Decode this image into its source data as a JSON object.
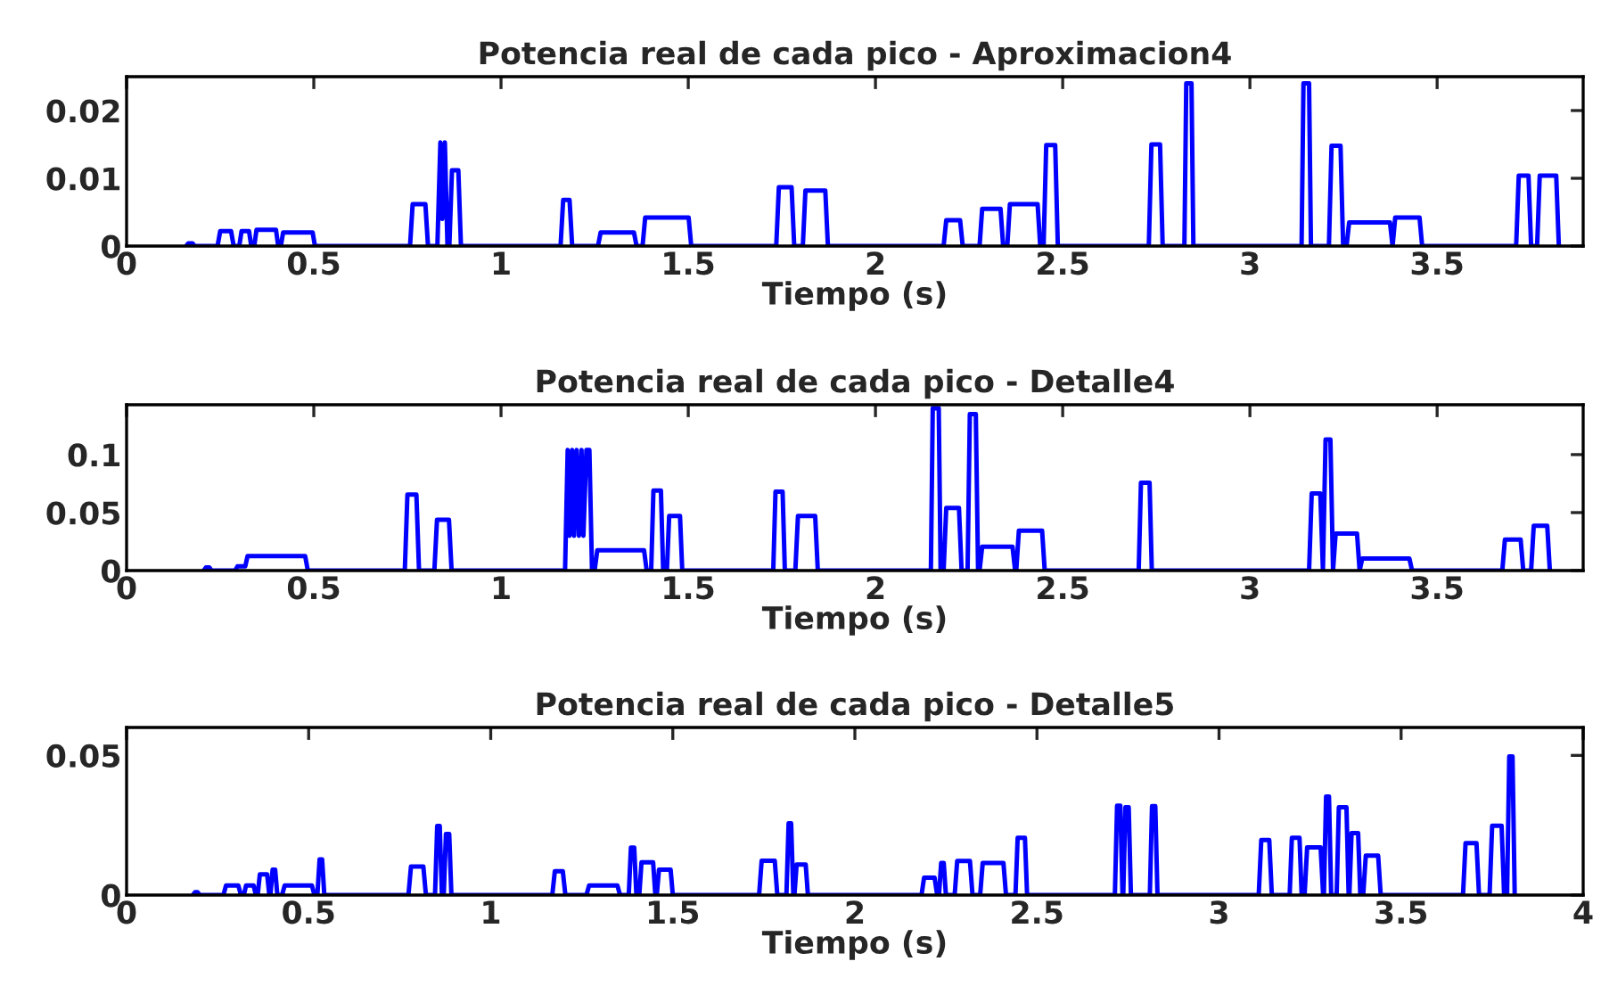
{
  "chart_data": [
    {
      "type": "line",
      "title": "Potencia real de cada pico - Aproximacion4",
      "xlabel": "Tiempo (s)",
      "xlim": [
        0,
        3.89
      ],
      "xticks": [
        0,
        0.5,
        1,
        1.5,
        2,
        2.5,
        3,
        3.5
      ],
      "ylim": [
        0,
        0.025
      ],
      "yticks": [
        0,
        0.01,
        0.02
      ],
      "grid": false,
      "legend": false,
      "series": [
        {
          "color": "#0000ff",
          "x": [
            0.159,
            0.165,
            0.176,
            0.182,
            0.243,
            0.25,
            0.279,
            0.286,
            0.301,
            0.307,
            0.327,
            0.333,
            0.341,
            0.347,
            0.399,
            0.405,
            0.412,
            0.418,
            0.497,
            0.503,
            0.757,
            0.764,
            0.798,
            0.805,
            0.83,
            0.838,
            0.843,
            0.85,
            0.857,
            0.862,
            0.869,
            0.886,
            0.893,
            1.159,
            1.166,
            1.183,
            1.19,
            1.259,
            1.266,
            1.355,
            1.362,
            1.378,
            1.385,
            1.501,
            1.508,
            1.735,
            1.742,
            1.776,
            1.783,
            1.806,
            1.813,
            1.866,
            1.873,
            2.182,
            2.189,
            2.226,
            2.233,
            2.278,
            2.285,
            2.334,
            2.341,
            2.352,
            2.359,
            2.433,
            2.44,
            2.449,
            2.456,
            2.48,
            2.487,
            2.73,
            2.737,
            2.76,
            2.767,
            2.825,
            2.83,
            2.837,
            2.844,
            2.849,
            3.138,
            3.143,
            3.15,
            3.158,
            3.163,
            3.211,
            3.218,
            3.242,
            3.249,
            3.258,
            3.265,
            3.374,
            3.381,
            3.388,
            3.453,
            3.46,
            3.711,
            3.718,
            3.744,
            3.751,
            3.767,
            3.774,
            3.818,
            3.825
          ],
          "values": [
            0,
            0.0004,
            0.0004,
            0,
            0,
            0.0022,
            0.0022,
            0,
            0,
            0.0022,
            0.0022,
            0,
            0,
            0.0024,
            0.0024,
            0,
            0,
            0.002,
            0.002,
            0,
            0,
            0.0062,
            0.0062,
            0,
            0,
            0.0153,
            0.004,
            0.0153,
            0,
            0,
            0.0112,
            0.0112,
            0,
            0,
            0.0068,
            0.0068,
            0,
            0,
            0.002,
            0.002,
            0,
            0,
            0.0042,
            0.0042,
            0,
            0,
            0.0087,
            0.0087,
            0,
            0,
            0.0082,
            0.0082,
            0,
            0,
            0.0038,
            0.0038,
            0,
            0,
            0.0055,
            0.0055,
            0,
            0,
            0.0062,
            0.0062,
            0,
            0,
            0.0149,
            0.0149,
            0,
            0,
            0.015,
            0.015,
            0,
            0,
            0.024,
            null,
            0.024,
            0,
            0,
            0.024,
            null,
            0.024,
            0,
            0,
            0.0148,
            0.0148,
            0,
            0,
            0.0035,
            0.0035,
            0,
            0.0042,
            0.0042,
            0,
            0,
            0.0104,
            0.0104,
            0,
            0,
            0.0104,
            0.0104,
            0
          ]
        }
      ]
    },
    {
      "type": "line",
      "title": "Potencia real de cada pico - Detalle4",
      "xlabel": "Tiempo (s)",
      "xlim": [
        0,
        3.89
      ],
      "xticks": [
        0,
        0.5,
        1,
        1.5,
        2,
        2.5,
        3,
        3.5
      ],
      "ylim": [
        0,
        0.143
      ],
      "yticks": [
        0,
        0.05,
        0.1
      ],
      "grid": false,
      "legend": false,
      "series": [
        {
          "color": "#0000ff",
          "x": [
            0.206,
            0.212,
            0.221,
            0.227,
            0.29,
            0.296,
            0.317,
            0.323,
            0.477,
            0.484,
            0.743,
            0.75,
            0.774,
            0.781,
            0.822,
            0.829,
            0.861,
            0.868,
            1.171,
            1.178,
            1.183,
            1.19,
            1.195,
            1.202,
            1.208,
            1.215,
            1.22,
            1.228,
            1.236,
            1.243,
            1.25,
            1.257,
            1.382,
            1.389,
            1.401,
            1.407,
            1.427,
            1.433,
            1.443,
            1.449,
            1.478,
            1.484,
            1.727,
            1.733,
            1.752,
            1.758,
            1.786,
            1.793,
            1.839,
            1.846,
            2.148,
            2.153,
            2.161,
            2.169,
            2.174,
            2.182,
            2.189,
            2.223,
            2.23,
            2.246,
            2.252,
            2.268,
            2.274,
            2.278,
            2.285,
            2.366,
            2.373,
            2.376,
            2.383,
            2.445,
            2.452,
            2.703,
            2.709,
            2.732,
            2.738,
            3.158,
            3.165,
            3.188,
            3.195,
            3.202,
            3.215,
            3.222,
            3.229,
            3.286,
            3.293,
            3.3,
            3.426,
            3.433,
            3.674,
            3.681,
            3.723,
            3.73,
            3.751,
            3.758,
            3.794,
            3.801
          ],
          "values": [
            0,
            0.0026,
            0.0026,
            0,
            0,
            0.0036,
            0.0036,
            0.0124,
            0.0124,
            0,
            0,
            0.0655,
            0.0655,
            0,
            0,
            0.0438,
            0.0438,
            0,
            0,
            0.104,
            0.03,
            0.104,
            0.03,
            0.104,
            0.03,
            0.104,
            0.03,
            0.104,
            0.104,
            0,
            0,
            0.0175,
            0.0175,
            0,
            0,
            0.069,
            0.069,
            0,
            0,
            0.047,
            0.047,
            0,
            0,
            0.068,
            0.068,
            0,
            0,
            0.047,
            0.047,
            0,
            0,
            0.14,
            null,
            0.14,
            0,
            0,
            0.054,
            0.054,
            0,
            0,
            0.135,
            0.135,
            0,
            0,
            0.0206,
            0.0206,
            0,
            0,
            0.0345,
            0.0345,
            0,
            0,
            0.0758,
            0.0758,
            0,
            0,
            0.0665,
            0.0665,
            0,
            0.113,
            0.113,
            0,
            0.032,
            0.032,
            0,
            0.0103,
            0.0103,
            0,
            0,
            0.0268,
            0.0268,
            0,
            0,
            0.0387,
            0.0387,
            0
          ]
        }
      ]
    },
    {
      "type": "line",
      "title": "Potencia real de cada pico - Detalle5",
      "xlabel": "Tiempo (s)",
      "xlim": [
        0,
        4
      ],
      "xticks": [
        0,
        0.5,
        1,
        1.5,
        2,
        2.5,
        3,
        3.5,
        4
      ],
      "ylim": [
        0,
        0.06
      ],
      "yticks": [
        0,
        0.05
      ],
      "grid": false,
      "legend": false,
      "series": [
        {
          "color": "#0000ff",
          "x": [
            0.182,
            0.188,
            0.195,
            0.201,
            0.266,
            0.273,
            0.307,
            0.314,
            0.322,
            0.328,
            0.349,
            0.355,
            0.36,
            0.366,
            0.386,
            0.392,
            0.395,
            0.401,
            0.408,
            0.414,
            0.427,
            0.434,
            0.509,
            0.516,
            0.524,
            0.53,
            0.537,
            0.543,
            0.774,
            0.781,
            0.815,
            0.822,
            0.847,
            0.853,
            0.86,
            0.866,
            0.871,
            0.877,
            0.886,
            0.892,
            1.169,
            1.176,
            1.198,
            1.205,
            1.263,
            1.27,
            1.348,
            1.355,
            1.379,
            1.385,
            1.394,
            1.4,
            1.408,
            1.414,
            1.446,
            1.452,
            1.456,
            1.462,
            1.494,
            1.5,
            1.737,
            1.744,
            1.78,
            1.787,
            1.812,
            1.818,
            1.825,
            1.831,
            1.834,
            1.84,
            1.865,
            1.871,
            2.183,
            2.19,
            2.219,
            2.226,
            2.231,
            2.237,
            2.244,
            2.25,
            2.274,
            2.281,
            2.316,
            2.323,
            2.344,
            2.351,
            2.408,
            2.415,
            2.441,
            2.447,
            2.467,
            2.473,
            2.714,
            2.72,
            2.729,
            2.735,
            2.737,
            2.743,
            2.752,
            2.758,
            2.81,
            2.816,
            2.825,
            2.831,
            3.109,
            3.116,
            3.138,
            3.145,
            3.194,
            3.2,
            3.221,
            3.227,
            3.235,
            3.242,
            3.279,
            3.286,
            3.288,
            3.294,
            3.302,
            3.308,
            3.323,
            3.329,
            3.35,
            3.356,
            3.358,
            3.364,
            3.382,
            3.388,
            3.396,
            3.403,
            3.437,
            3.444,
            3.67,
            3.677,
            3.707,
            3.714,
            3.743,
            3.75,
            3.776,
            3.783,
            3.791,
            3.797,
            3.806,
            3.812
          ],
          "values": [
            0,
            0.001,
            0.001,
            0,
            0,
            0.0034,
            0.0034,
            0,
            0,
            0.0034,
            0.0034,
            0,
            0,
            0.0074,
            0.0074,
            0,
            0,
            0.0091,
            0.0091,
            0,
            0,
            0.0034,
            0.0034,
            0,
            0,
            0.0128,
            0.0128,
            0,
            0,
            0.0102,
            0.0102,
            0,
            0,
            0.0247,
            0.0247,
            0,
            0,
            0.0219,
            0.0219,
            0,
            0,
            0.0085,
            0.0085,
            0,
            0,
            0.0034,
            0.0034,
            0,
            0,
            0.017,
            0.017,
            0,
            0,
            0.0117,
            0.0117,
            0,
            0,
            0.0091,
            0.0091,
            0,
            0,
            0.0123,
            0.0123,
            0,
            0,
            0.0257,
            0.0257,
            0,
            0,
            0.0109,
            0.0109,
            0,
            0,
            0.0062,
            0.0062,
            0,
            0,
            0.0115,
            0.0115,
            0,
            0,
            0.0122,
            0.0122,
            0,
            0,
            0.0115,
            0.0115,
            0,
            0,
            0.0205,
            0.0205,
            0,
            0,
            0.032,
            0.032,
            0,
            0,
            0.0314,
            0.0314,
            0,
            0,
            0.0318,
            0.0318,
            0,
            0,
            0.0197,
            0.0197,
            0,
            0,
            0.0205,
            0.0205,
            0,
            0,
            0.0171,
            0.0171,
            0,
            0,
            0.0353,
            0.0353,
            0,
            0,
            0.0314,
            0.0314,
            0,
            0,
            0.0222,
            0.0222,
            0,
            0,
            0.0141,
            0.0141,
            0,
            0,
            0.0186,
            0.0186,
            0,
            0,
            0.0248,
            0.0248,
            0,
            0,
            0.0496,
            0.0496,
            0
          ]
        }
      ]
    }
  ]
}
